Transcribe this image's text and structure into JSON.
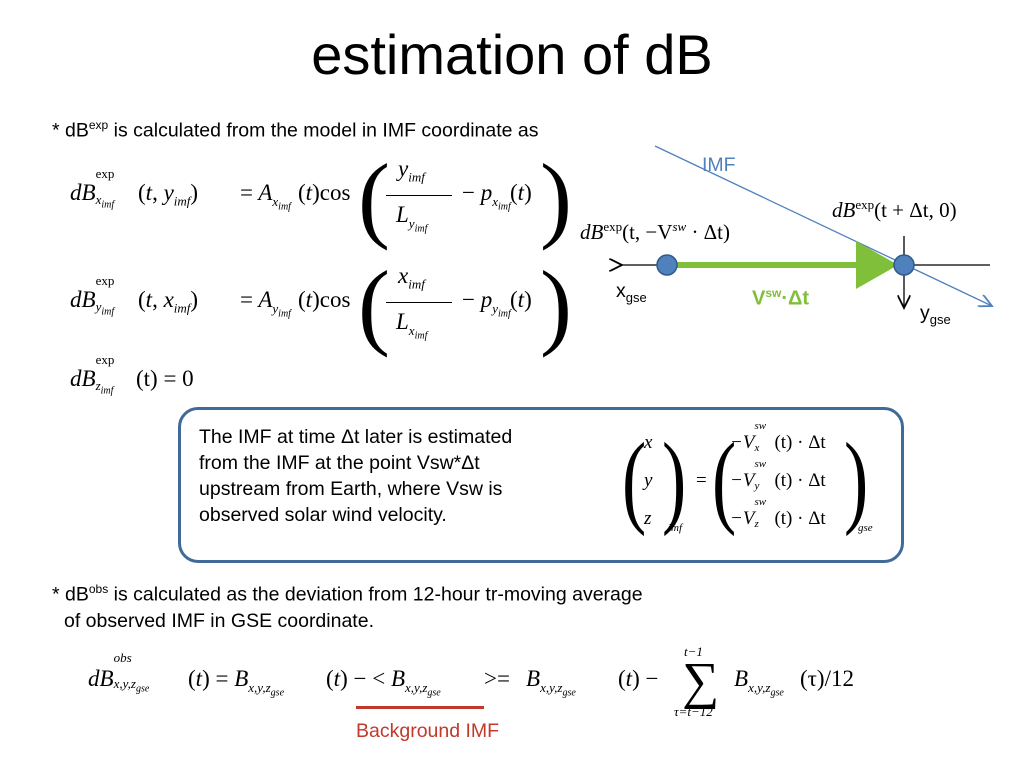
{
  "slide": {
    "title": "estimation of dB",
    "bullet1": {
      "prefix": "* dB",
      "sup": "exp",
      "text": " is calculated from the model in IMF coordinate as"
    },
    "eq1": {
      "lhs_base": "dB",
      "lhs_sup": "exp",
      "lhs_sub": "x",
      "lhs_subsub": "imf",
      "args": "(t, y",
      "args_sub": "imf",
      "args_close": ")",
      "eq": "=",
      "A": "A",
      "A_sub": "x",
      "A_subsub": "imf",
      "At": "(t)",
      "cos": "cos",
      "num": "y",
      "num_sub": "imf",
      "den": "L",
      "den_sub": "y",
      "den_subsub": "imf",
      "minus": "−",
      "p": "p",
      "p_sub": "x",
      "p_subsub": "imf",
      "pt": "(t)"
    },
    "eq2": {
      "lhs_base": "dB",
      "lhs_sup": "exp",
      "lhs_sub": "y",
      "lhs_subsub": "imf",
      "args": "(t, x",
      "args_sub": "imf",
      "args_close": ")",
      "eq": "=",
      "A": "A",
      "A_sub": "y",
      "A_subsub": "imf",
      "At": "(t)",
      "cos": "cos",
      "num": "x",
      "num_sub": "imf",
      "den": "L",
      "den_sub": "x",
      "den_subsub": "imf",
      "minus": "−",
      "p": "p",
      "p_sub": "y",
      "p_subsub": "imf",
      "pt": "(t)"
    },
    "eq3": {
      "lhs_base": "dB",
      "lhs_sup": "exp",
      "lhs_sub": "z",
      "lhs_subsub": "imf",
      "rhs": "(t) = 0"
    },
    "diagram": {
      "imf_label": "IMF",
      "right_label_base": "dB",
      "right_label_sup": "exp",
      "right_label_args": "(t + Δt, 0)",
      "left_label_base": "dB",
      "left_label_sup": "exp",
      "left_label_args1": "(t, −V",
      "left_label_sw": "sw",
      "left_label_args2": " · Δt)",
      "x_label": "x",
      "x_sub": "gse",
      "y_label": "y",
      "y_sub": "gse",
      "vsw_label": "V",
      "vsw_sup": "sw",
      "vsw_rest": "·Δt",
      "imf_color": "#4f81bd",
      "arrow_color": "#7fbf3a",
      "point_color": "#4f81bd"
    },
    "infobox": {
      "text_lines": [
        "The IMF at time Δt later is estimated",
        "from the IMF at the point Vsw*Δt",
        "upstream from Earth, where Vsw is",
        "observed solar wind velocity."
      ],
      "vec_left": [
        "x",
        "y",
        "z"
      ],
      "vec_left_sub": "imf",
      "eq": "=",
      "vec_right": [
        {
          "pre": "−V",
          "sup": "sw",
          "sub": "x",
          "post": "(t) · Δt"
        },
        {
          "pre": "−V",
          "sup": "sw",
          "sub": "y",
          "post": "(t) · Δt"
        },
        {
          "pre": "−V",
          "sup": "sw",
          "sub": "z",
          "post": "(t) · Δt"
        }
      ],
      "vec_right_sub": "gse",
      "border_color": "#3f6a9a"
    },
    "bullet2": {
      "line1_prefix": "* dB",
      "line1_sup": "obs",
      "line1_text": " is calculated as the deviation from 12-hour tr-moving average",
      "line2": "of observed IMF in GSE coordinate."
    },
    "eq4": {
      "lhs_base": "dB",
      "lhs_sup": "obs",
      "lhs_sub": "x,y,z",
      "lhs_subsub": "gse",
      "t": "(t)",
      "eq": "=",
      "B": "B",
      "B_sub": "x,y,z",
      "B_subsub": "gse",
      "minus": "−",
      "lt": "<",
      "gt": ">",
      "eq2": "=",
      "sum": "∑",
      "sum_top": "t−1",
      "sum_bot": "τ=t−12",
      "tau": "(τ)",
      "div": "/12"
    },
    "background_label": "Background IMF",
    "background_color": "#c0392b"
  }
}
